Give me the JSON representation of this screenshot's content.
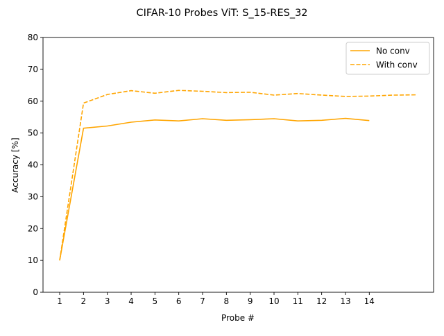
{
  "chart_data": {
    "type": "line",
    "title": "CIFAR-10 Probes ViT: S_15-RES_32",
    "xlabel": "Probe #",
    "ylabel": "Accuracy [%]",
    "xlim": [
      0.3,
      16.7
    ],
    "ylim": [
      0,
      80
    ],
    "xticks": [
      1,
      2,
      3,
      4,
      5,
      6,
      7,
      8,
      9,
      10,
      11,
      12,
      13,
      14
    ],
    "yticks": [
      0,
      10,
      20,
      30,
      40,
      50,
      60,
      70,
      80
    ],
    "grid": false,
    "legend_position": "top-right",
    "series": [
      {
        "name": "No conv",
        "color": "#FFA500",
        "linestyle": "solid",
        "x": [
          1,
          2,
          3,
          4,
          5,
          6,
          7,
          8,
          9,
          10,
          11,
          12,
          13,
          14
        ],
        "y": [
          10.0,
          51.5,
          52.2,
          53.4,
          54.1,
          53.8,
          54.5,
          54.0,
          54.2,
          54.5,
          53.8,
          54.0,
          54.6,
          53.9
        ]
      },
      {
        "name": "With conv",
        "color": "#FFA500",
        "linestyle": "dashed",
        "x": [
          1,
          2,
          3,
          4,
          5,
          6,
          7,
          8,
          9,
          10,
          11,
          12,
          13,
          14,
          15,
          16
        ],
        "y": [
          10.0,
          59.4,
          62.1,
          63.3,
          62.5,
          63.4,
          63.1,
          62.7,
          62.8,
          61.9,
          62.4,
          61.9,
          61.5,
          61.6,
          61.9,
          62.0
        ]
      }
    ]
  }
}
